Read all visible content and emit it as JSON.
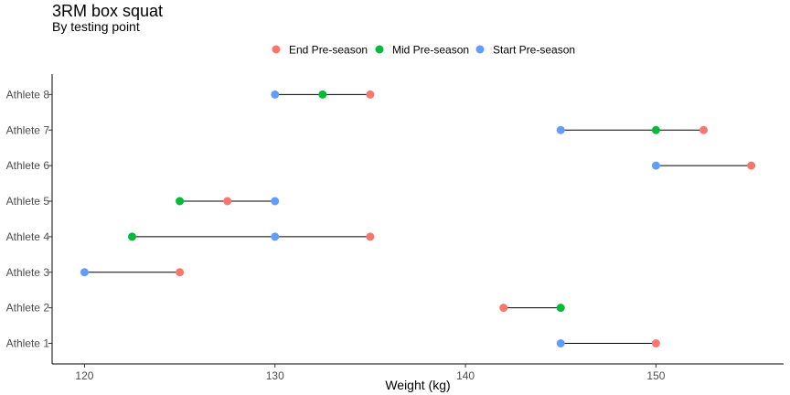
{
  "chart_data": {
    "type": "dumbbell",
    "title": "3RM box squat",
    "subtitle": "By testing point",
    "xlabel": "Weight (kg)",
    "ylabel": "",
    "xlim": [
      118.3,
      156.7
    ],
    "x_ticks": [
      120,
      130,
      140,
      150
    ],
    "x_tick_labels": [
      "120",
      "130",
      "140",
      "150"
    ],
    "categories": [
      "Athlete 1",
      "Athlete 2",
      "Athlete 3",
      "Athlete 4",
      "Athlete 5",
      "Athlete 6",
      "Athlete 7",
      "Athlete 8"
    ],
    "legend": {
      "position": "top"
    },
    "grid": false,
    "series": [
      {
        "name": "End Pre-season",
        "color": "#F8766D",
        "values": [
          150,
          142,
          125,
          135,
          127.5,
          155,
          152.5,
          135
        ]
      },
      {
        "name": "Mid Pre-season",
        "color": "#00BA38",
        "values": [
          null,
          145,
          null,
          122.5,
          125,
          null,
          150,
          132.5
        ]
      },
      {
        "name": "Start Pre-season",
        "color": "#619CFF",
        "values": [
          145,
          null,
          120,
          130,
          130,
          150,
          145,
          130
        ]
      }
    ]
  }
}
